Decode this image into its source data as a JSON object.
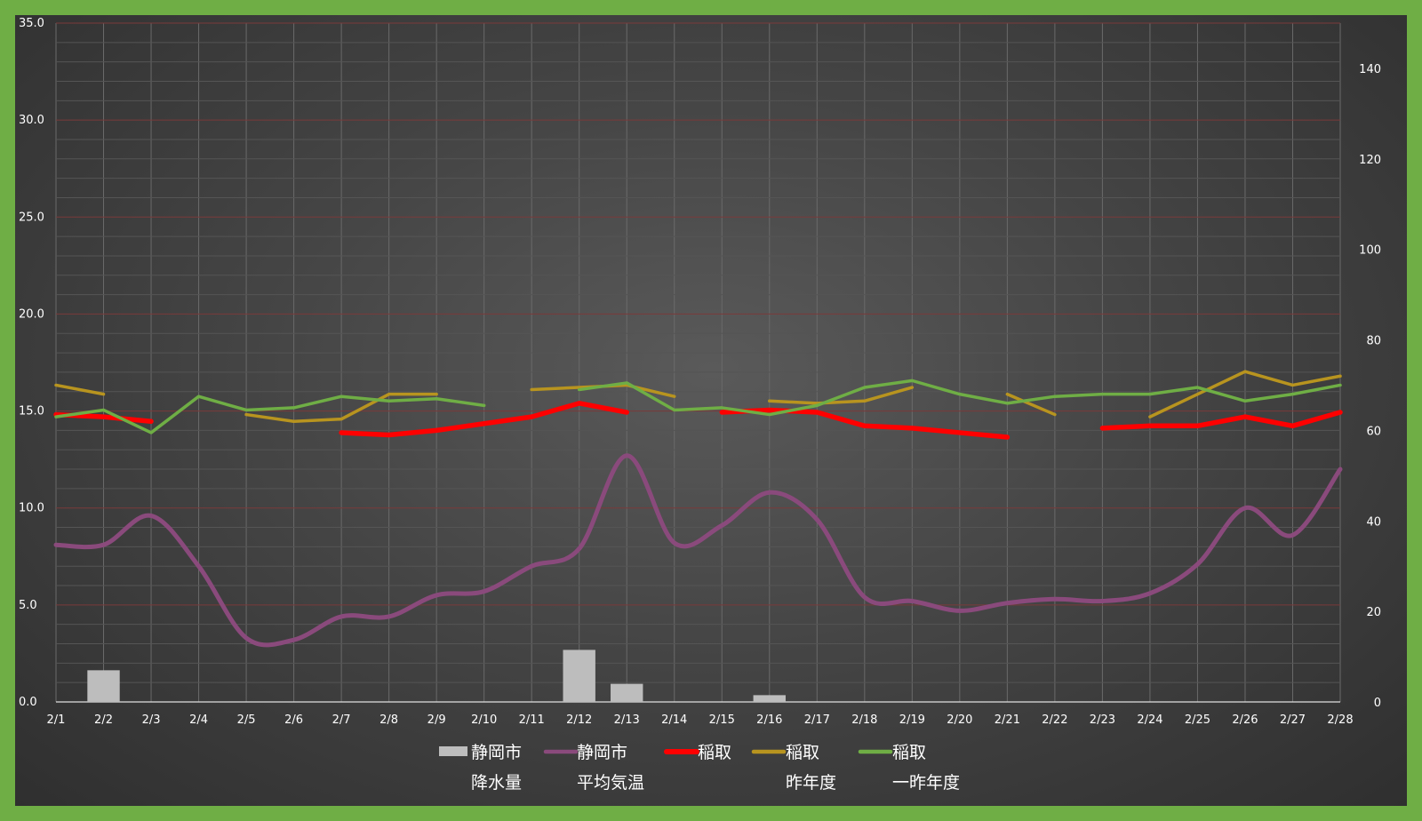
{
  "chart_data": {
    "type": "line",
    "categories": [
      "2/1",
      "2/2",
      "2/3",
      "2/4",
      "2/5",
      "2/6",
      "2/7",
      "2/8",
      "2/9",
      "2/10",
      "2/11",
      "2/12",
      "2/13",
      "2/14",
      "2/15",
      "2/16",
      "2/17",
      "2/18",
      "2/19",
      "2/20",
      "2/21",
      "2/22",
      "2/23",
      "2/24",
      "2/25",
      "2/26",
      "2/27",
      "2/28"
    ],
    "y_left": {
      "min": 0,
      "max": 35,
      "step": 5,
      "ticks": [
        "0.0",
        "5.0",
        "10.0",
        "15.0",
        "20.0",
        "25.0",
        "30.0",
        "35.0"
      ]
    },
    "y_right": {
      "min": 0,
      "max": 150,
      "ticks": [
        "0",
        "20",
        "40",
        "60",
        "80",
        "100",
        "120",
        "140"
      ]
    },
    "grid": true,
    "legend_position": "bottom",
    "series": [
      {
        "name": "静岡市\n降水量",
        "kind": "bar",
        "axis": "right",
        "color": "#bdbdbd",
        "values": [
          null,
          7,
          null,
          null,
          null,
          null,
          null,
          null,
          null,
          null,
          null,
          11.5,
          4,
          null,
          null,
          1.5,
          null,
          null,
          null,
          null,
          null,
          null,
          null,
          null,
          null,
          null,
          null,
          null
        ]
      },
      {
        "name": "静岡市\n平均気温",
        "kind": "line",
        "axis": "left",
        "color": "#8a4a7c",
        "smooth": true,
        "values": [
          8.1,
          8.1,
          9.6,
          7.0,
          3.3,
          3.2,
          4.4,
          4.4,
          5.5,
          5.7,
          7.0,
          7.9,
          12.7,
          8.2,
          9.1,
          10.8,
          9.4,
          5.4,
          5.2,
          4.7,
          5.1,
          5.3,
          5.2,
          5.6,
          7.1,
          10.0,
          8.6,
          12.0
        ]
      },
      {
        "name": "稲取",
        "kind": "line",
        "axis": "right",
        "color": "#ff0000",
        "values": [
          63.5,
          63,
          62,
          null,
          null,
          null,
          59.5,
          59,
          60,
          61.5,
          63,
          66,
          64,
          null,
          64,
          64.5,
          64,
          61,
          60.5,
          59.5,
          58.5,
          null,
          60.5,
          61,
          61,
          63,
          61,
          64
        ]
      },
      {
        "name": "稲取\n昨年度",
        "kind": "line",
        "axis": "right",
        "color": "#b8941f",
        "values": [
          70,
          68,
          null,
          null,
          63.5,
          62,
          62.5,
          68,
          68,
          null,
          69,
          69.5,
          70,
          67.5,
          null,
          66.5,
          66,
          66.5,
          69.5,
          null,
          68,
          63.5,
          null,
          63,
          68,
          73,
          70,
          72
        ]
      },
      {
        "name": "稲取\n一昨年度",
        "kind": "line",
        "axis": "right",
        "color": "#6fae45",
        "values": [
          63,
          64.5,
          59.5,
          67.5,
          64.5,
          65,
          67.5,
          66.5,
          67,
          65.5,
          null,
          69,
          70.5,
          64.5,
          65,
          63.5,
          65.5,
          69.5,
          71,
          68,
          66,
          67.5,
          68,
          68,
          69.5,
          66.5,
          68,
          70
        ]
      }
    ]
  }
}
